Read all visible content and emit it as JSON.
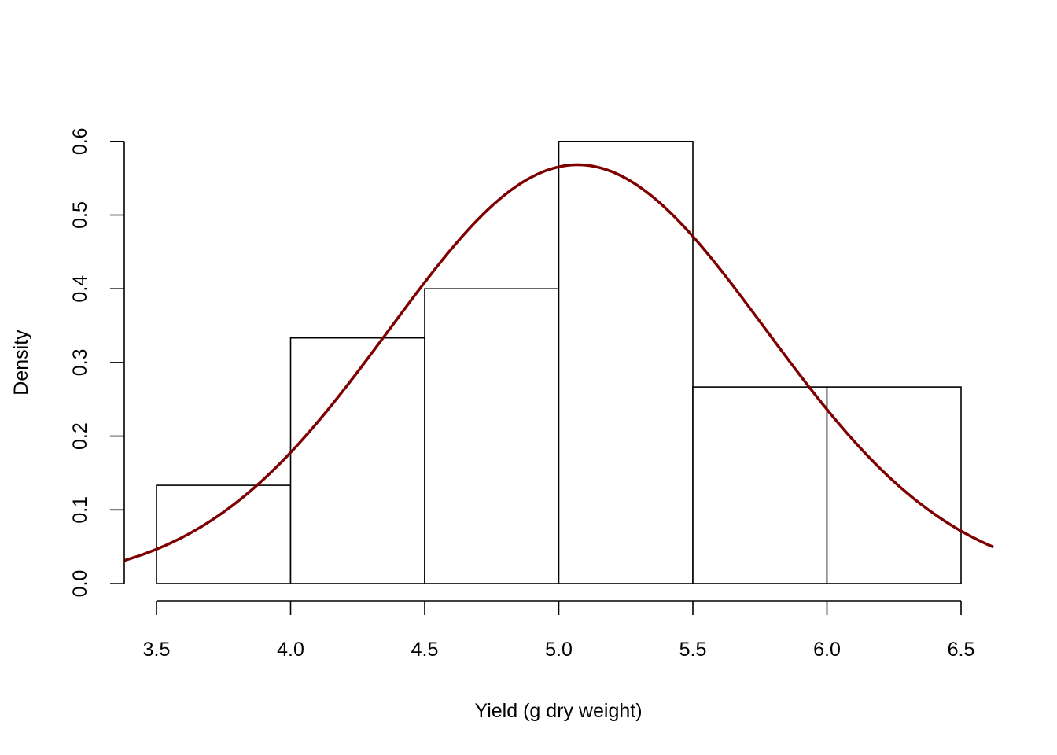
{
  "chart_data": {
    "type": "bar",
    "subtype": "histogram",
    "title": "",
    "xlabel": "Yield (g dry weight)",
    "ylabel": "Density",
    "bins": [
      {
        "start": 3.5,
        "end": 4.0,
        "density": 0.1333
      },
      {
        "start": 4.0,
        "end": 4.5,
        "density": 0.3333
      },
      {
        "start": 4.5,
        "end": 5.0,
        "density": 0.4
      },
      {
        "start": 5.0,
        "end": 5.5,
        "density": 0.6
      },
      {
        "start": 5.5,
        "end": 6.0,
        "density": 0.2667
      },
      {
        "start": 6.0,
        "end": 6.5,
        "density": 0.2667
      }
    ],
    "x_ticks": [
      "3.5",
      "4.0",
      "4.5",
      "5.0",
      "5.5",
      "6.0",
      "6.5"
    ],
    "y_ticks": [
      "0.0",
      "0.1",
      "0.2",
      "0.3",
      "0.4",
      "0.5",
      "0.6"
    ],
    "xlim": [
      3.38,
      6.62
    ],
    "ylim": [
      0,
      0.6
    ],
    "grid": false,
    "overlay_curve": {
      "type": "normal_density",
      "mean": 5.07,
      "sd": 0.702,
      "color": "#7f0000"
    }
  }
}
